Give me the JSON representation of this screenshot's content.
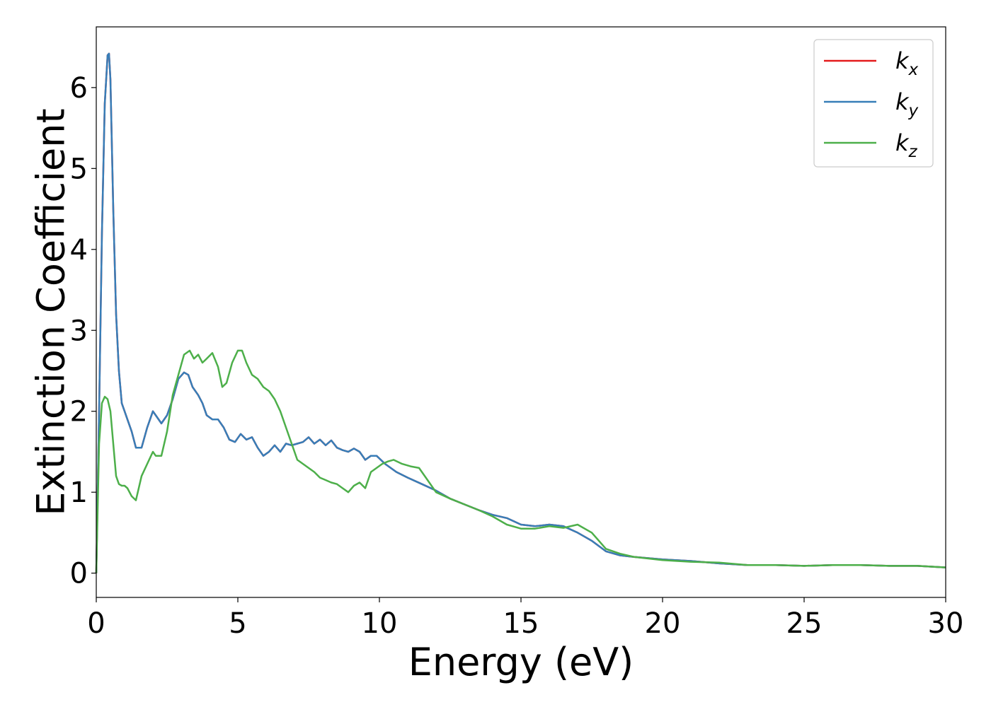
{
  "chart_data": {
    "type": "line",
    "xlabel": "Energy (eV)",
    "ylabel": "Extinction Coefficient",
    "xlim": [
      0,
      30
    ],
    "ylim": [
      -0.3,
      6.75
    ],
    "xticks": [
      0,
      5,
      10,
      15,
      20,
      25,
      30
    ],
    "yticks": [
      0,
      1,
      2,
      3,
      4,
      5,
      6
    ],
    "grid": false,
    "legend_position": "top-right",
    "series": [
      {
        "name": "k_x",
        "label_base": "k",
        "label_sub": "x",
        "color": "#e41a1c",
        "x": [
          0,
          0.1,
          0.2,
          0.3,
          0.4,
          0.45,
          0.5,
          0.6,
          0.7,
          0.8,
          0.9,
          1.0,
          1.1,
          1.25,
          1.4,
          1.6,
          1.8,
          2.0,
          2.1,
          2.3,
          2.5,
          2.7,
          2.9,
          3.1,
          3.25,
          3.4,
          3.6,
          3.75,
          3.9,
          4.1,
          4.3,
          4.5,
          4.7,
          4.9,
          5.1,
          5.3,
          5.5,
          5.7,
          5.9,
          6.1,
          6.3,
          6.5,
          6.7,
          6.9,
          7.1,
          7.3,
          7.5,
          7.7,
          7.9,
          8.1,
          8.3,
          8.5,
          8.7,
          8.9,
          9.1,
          9.3,
          9.5,
          9.7,
          9.9,
          10.2,
          10.6,
          11.0,
          11.5,
          12.0,
          12.5,
          13.0,
          13.5,
          14.0,
          14.5,
          15.0,
          15.5,
          16.0,
          16.5,
          17.0,
          17.5,
          18.0,
          18.5,
          19.0,
          20.0,
          21.0,
          22.0,
          23.0,
          24.0,
          25.0,
          26.0,
          27.0,
          28.0,
          29.0,
          30.0
        ],
        "values": [
          0.0,
          2.0,
          4.2,
          5.8,
          6.4,
          6.42,
          6.1,
          4.5,
          3.2,
          2.5,
          2.1,
          2.0,
          1.9,
          1.75,
          1.55,
          1.55,
          1.8,
          2.0,
          1.95,
          1.85,
          1.95,
          2.15,
          2.4,
          2.48,
          2.45,
          2.3,
          2.2,
          2.1,
          1.95,
          1.9,
          1.9,
          1.8,
          1.65,
          1.62,
          1.72,
          1.65,
          1.68,
          1.55,
          1.45,
          1.5,
          1.58,
          1.5,
          1.6,
          1.58,
          1.6,
          1.62,
          1.68,
          1.6,
          1.65,
          1.58,
          1.64,
          1.55,
          1.52,
          1.5,
          1.54,
          1.5,
          1.4,
          1.45,
          1.45,
          1.35,
          1.25,
          1.18,
          1.1,
          1.02,
          0.92,
          0.85,
          0.78,
          0.72,
          0.68,
          0.6,
          0.58,
          0.6,
          0.58,
          0.5,
          0.4,
          0.27,
          0.22,
          0.2,
          0.17,
          0.15,
          0.12,
          0.1,
          0.1,
          0.09,
          0.1,
          0.1,
          0.09,
          0.09,
          0.07
        ]
      },
      {
        "name": "k_y",
        "label_base": "k",
        "label_sub": "y",
        "color": "#377eb8",
        "x": [
          0,
          0.1,
          0.2,
          0.3,
          0.4,
          0.45,
          0.5,
          0.6,
          0.7,
          0.8,
          0.9,
          1.0,
          1.1,
          1.25,
          1.4,
          1.6,
          1.8,
          2.0,
          2.1,
          2.3,
          2.5,
          2.7,
          2.9,
          3.1,
          3.25,
          3.4,
          3.6,
          3.75,
          3.9,
          4.1,
          4.3,
          4.5,
          4.7,
          4.9,
          5.1,
          5.3,
          5.5,
          5.7,
          5.9,
          6.1,
          6.3,
          6.5,
          6.7,
          6.9,
          7.1,
          7.3,
          7.5,
          7.7,
          7.9,
          8.1,
          8.3,
          8.5,
          8.7,
          8.9,
          9.1,
          9.3,
          9.5,
          9.7,
          9.9,
          10.2,
          10.6,
          11.0,
          11.5,
          12.0,
          12.5,
          13.0,
          13.5,
          14.0,
          14.5,
          15.0,
          15.5,
          16.0,
          16.5,
          17.0,
          17.5,
          18.0,
          18.5,
          19.0,
          20.0,
          21.0,
          22.0,
          23.0,
          24.0,
          25.0,
          26.0,
          27.0,
          28.0,
          29.0,
          30.0
        ],
        "values": [
          0.0,
          2.0,
          4.2,
          5.8,
          6.4,
          6.42,
          6.1,
          4.5,
          3.2,
          2.5,
          2.1,
          2.0,
          1.9,
          1.75,
          1.55,
          1.55,
          1.8,
          2.0,
          1.95,
          1.85,
          1.95,
          2.15,
          2.4,
          2.48,
          2.45,
          2.3,
          2.2,
          2.1,
          1.95,
          1.9,
          1.9,
          1.8,
          1.65,
          1.62,
          1.72,
          1.65,
          1.68,
          1.55,
          1.45,
          1.5,
          1.58,
          1.5,
          1.6,
          1.58,
          1.6,
          1.62,
          1.68,
          1.6,
          1.65,
          1.58,
          1.64,
          1.55,
          1.52,
          1.5,
          1.54,
          1.5,
          1.4,
          1.45,
          1.45,
          1.35,
          1.25,
          1.18,
          1.1,
          1.02,
          0.92,
          0.85,
          0.78,
          0.72,
          0.68,
          0.6,
          0.58,
          0.6,
          0.58,
          0.5,
          0.4,
          0.27,
          0.22,
          0.2,
          0.17,
          0.15,
          0.12,
          0.1,
          0.1,
          0.09,
          0.1,
          0.1,
          0.09,
          0.09,
          0.07
        ]
      },
      {
        "name": "k_z",
        "label_base": "k",
        "label_sub": "z",
        "color": "#4daf4a",
        "x": [
          0,
          0.1,
          0.2,
          0.3,
          0.4,
          0.5,
          0.6,
          0.7,
          0.8,
          0.9,
          1.0,
          1.1,
          1.25,
          1.4,
          1.6,
          1.8,
          2.0,
          2.1,
          2.3,
          2.5,
          2.7,
          2.9,
          3.1,
          3.3,
          3.45,
          3.6,
          3.75,
          3.9,
          4.1,
          4.3,
          4.45,
          4.6,
          4.8,
          5.0,
          5.15,
          5.3,
          5.5,
          5.7,
          5.9,
          6.1,
          6.3,
          6.5,
          6.7,
          6.9,
          7.1,
          7.3,
          7.5,
          7.7,
          7.9,
          8.1,
          8.3,
          8.5,
          8.7,
          8.9,
          9.1,
          9.3,
          9.5,
          9.7,
          9.9,
          10.1,
          10.3,
          10.5,
          10.8,
          11.1,
          11.4,
          11.7,
          12.0,
          12.5,
          13.0,
          13.5,
          14.0,
          14.5,
          15.0,
          15.5,
          16.0,
          16.5,
          17.0,
          17.5,
          18.0,
          18.5,
          19.0,
          20.0,
          21.0,
          22.0,
          23.0,
          24.0,
          25.0,
          26.0,
          27.0,
          28.0,
          29.0,
          30.0
        ],
        "values": [
          0.0,
          1.6,
          2.1,
          2.18,
          2.15,
          2.0,
          1.6,
          1.2,
          1.1,
          1.08,
          1.08,
          1.05,
          0.95,
          0.9,
          1.2,
          1.35,
          1.5,
          1.45,
          1.45,
          1.75,
          2.2,
          2.45,
          2.7,
          2.75,
          2.65,
          2.7,
          2.6,
          2.65,
          2.72,
          2.55,
          2.3,
          2.35,
          2.6,
          2.75,
          2.75,
          2.6,
          2.45,
          2.4,
          2.3,
          2.25,
          2.15,
          2.0,
          1.8,
          1.6,
          1.4,
          1.35,
          1.3,
          1.25,
          1.18,
          1.15,
          1.12,
          1.1,
          1.05,
          1.0,
          1.08,
          1.12,
          1.05,
          1.25,
          1.3,
          1.35,
          1.38,
          1.4,
          1.35,
          1.32,
          1.3,
          1.15,
          1.0,
          0.92,
          0.85,
          0.78,
          0.7,
          0.6,
          0.55,
          0.55,
          0.58,
          0.56,
          0.6,
          0.5,
          0.3,
          0.24,
          0.2,
          0.16,
          0.14,
          0.13,
          0.1,
          0.1,
          0.09,
          0.1,
          0.1,
          0.09,
          0.09,
          0.07
        ]
      }
    ]
  }
}
